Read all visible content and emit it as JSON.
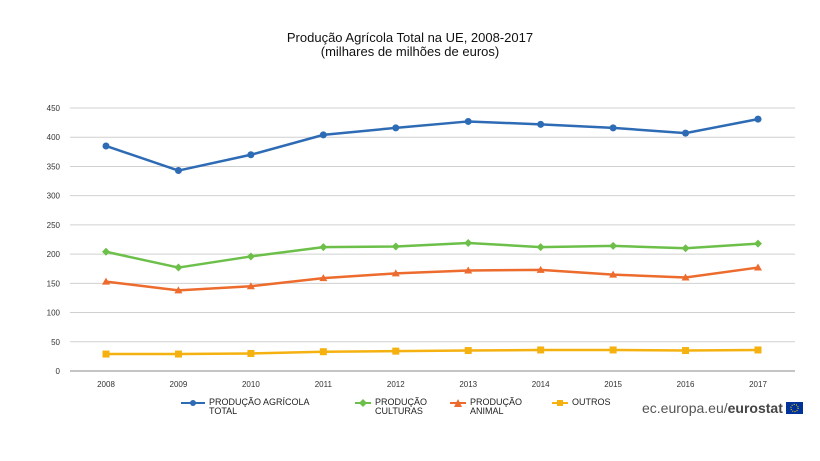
{
  "chart_data": {
    "type": "line",
    "title": "Produção Agrícola Total na UE, 2008-2017",
    "subtitle": "(milhares de milhões de euros)",
    "xlabel": "",
    "ylabel": "",
    "ylim": [
      0,
      450
    ],
    "yticks": [
      0,
      50,
      100,
      150,
      200,
      250,
      300,
      350,
      400,
      450
    ],
    "grid": true,
    "legend_position": "bottom",
    "categories": [
      "2008",
      "2009",
      "2010",
      "2011",
      "2012",
      "2013",
      "2014",
      "2015",
      "2016",
      "2017"
    ],
    "series": [
      {
        "name": "PRODUÇÃO AGRÍCOLA TOTAL",
        "color": "#2e6bb5",
        "marker": "circle",
        "values": [
          385,
          343,
          370,
          404,
          416,
          427,
          422,
          416,
          407,
          431
        ]
      },
      {
        "name": "PRODUÇÃO CULTURAS",
        "color": "#6cc04a",
        "marker": "diamond",
        "values": [
          204,
          177,
          196,
          212,
          213,
          219,
          212,
          214,
          210,
          218
        ]
      },
      {
        "name": "PRODUÇÃO ANIMAL",
        "color": "#ec6b2d",
        "marker": "triangle",
        "values": [
          153,
          138,
          145,
          159,
          167,
          172,
          173,
          165,
          160,
          177
        ]
      },
      {
        "name": "OUTROS",
        "color": "#f5b10f",
        "marker": "square",
        "values": [
          29,
          29,
          30,
          33,
          34,
          35,
          36,
          36,
          35,
          36
        ]
      }
    ]
  },
  "branding": {
    "prefix": "ec.europa.eu/",
    "name": "eurostat"
  },
  "colors": {
    "grid": "#d0d0d0",
    "axis": "#888888",
    "flag": "#003399",
    "flag_stars": "#ffcc00"
  }
}
